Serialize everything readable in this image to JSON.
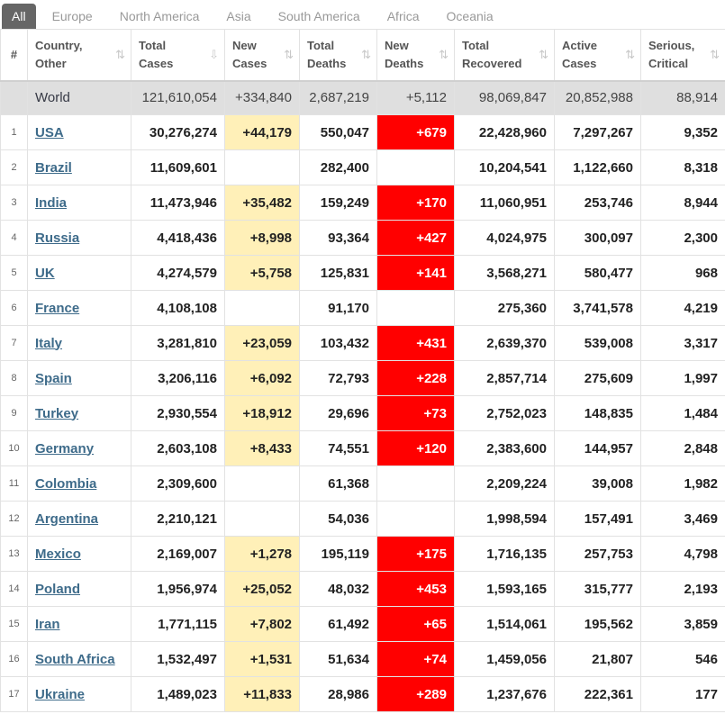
{
  "tabs": [
    "All",
    "Europe",
    "North America",
    "Asia",
    "South America",
    "Africa",
    "Oceania"
  ],
  "headers": [
    [
      "#"
    ],
    [
      "Country,",
      "Other"
    ],
    [
      "Total",
      "Cases"
    ],
    [
      "New",
      "Cases"
    ],
    [
      "Total",
      "Deaths"
    ],
    [
      "New",
      "Deaths"
    ],
    [
      "Total",
      "Recovered"
    ],
    [
      "Active",
      "Cases"
    ],
    [
      "Serious,",
      "Critical"
    ]
  ],
  "world": {
    "country": "World",
    "total_cases": "121,610,054",
    "new_cases": "+334,840",
    "total_deaths": "2,687,219",
    "new_deaths": "+5,112",
    "total_recovered": "98,069,847",
    "active_cases": "20,852,988",
    "serious": "88,914"
  },
  "rows": [
    {
      "num": "1",
      "country": "USA",
      "total_cases": "30,276,274",
      "new_cases": "+44,179",
      "total_deaths": "550,047",
      "new_deaths": "+679",
      "total_recovered": "22,428,960",
      "active_cases": "7,297,267",
      "serious": "9,352"
    },
    {
      "num": "2",
      "country": "Brazil",
      "total_cases": "11,609,601",
      "new_cases": "",
      "total_deaths": "282,400",
      "new_deaths": "",
      "total_recovered": "10,204,541",
      "active_cases": "1,122,660",
      "serious": "8,318"
    },
    {
      "num": "3",
      "country": "India",
      "total_cases": "11,473,946",
      "new_cases": "+35,482",
      "total_deaths": "159,249",
      "new_deaths": "+170",
      "total_recovered": "11,060,951",
      "active_cases": "253,746",
      "serious": "8,944"
    },
    {
      "num": "4",
      "country": "Russia",
      "total_cases": "4,418,436",
      "new_cases": "+8,998",
      "total_deaths": "93,364",
      "new_deaths": "+427",
      "total_recovered": "4,024,975",
      "active_cases": "300,097",
      "serious": "2,300"
    },
    {
      "num": "5",
      "country": "UK",
      "total_cases": "4,274,579",
      "new_cases": "+5,758",
      "total_deaths": "125,831",
      "new_deaths": "+141",
      "total_recovered": "3,568,271",
      "active_cases": "580,477",
      "serious": "968"
    },
    {
      "num": "6",
      "country": "France",
      "total_cases": "4,108,108",
      "new_cases": "",
      "total_deaths": "91,170",
      "new_deaths": "",
      "total_recovered": "275,360",
      "active_cases": "3,741,578",
      "serious": "4,219"
    },
    {
      "num": "7",
      "country": "Italy",
      "total_cases": "3,281,810",
      "new_cases": "+23,059",
      "total_deaths": "103,432",
      "new_deaths": "+431",
      "total_recovered": "2,639,370",
      "active_cases": "539,008",
      "serious": "3,317"
    },
    {
      "num": "8",
      "country": "Spain",
      "total_cases": "3,206,116",
      "new_cases": "+6,092",
      "total_deaths": "72,793",
      "new_deaths": "+228",
      "total_recovered": "2,857,714",
      "active_cases": "275,609",
      "serious": "1,997"
    },
    {
      "num": "9",
      "country": "Turkey",
      "total_cases": "2,930,554",
      "new_cases": "+18,912",
      "total_deaths": "29,696",
      "new_deaths": "+73",
      "total_recovered": "2,752,023",
      "active_cases": "148,835",
      "serious": "1,484"
    },
    {
      "num": "10",
      "country": "Germany",
      "total_cases": "2,603,108",
      "new_cases": "+8,433",
      "total_deaths": "74,551",
      "new_deaths": "+120",
      "total_recovered": "2,383,600",
      "active_cases": "144,957",
      "serious": "2,848"
    },
    {
      "num": "11",
      "country": "Colombia",
      "total_cases": "2,309,600",
      "new_cases": "",
      "total_deaths": "61,368",
      "new_deaths": "",
      "total_recovered": "2,209,224",
      "active_cases": "39,008",
      "serious": "1,982"
    },
    {
      "num": "12",
      "country": "Argentina",
      "total_cases": "2,210,121",
      "new_cases": "",
      "total_deaths": "54,036",
      "new_deaths": "",
      "total_recovered": "1,998,594",
      "active_cases": "157,491",
      "serious": "3,469"
    },
    {
      "num": "13",
      "country": "Mexico",
      "total_cases": "2,169,007",
      "new_cases": "+1,278",
      "total_deaths": "195,119",
      "new_deaths": "+175",
      "total_recovered": "1,716,135",
      "active_cases": "257,753",
      "serious": "4,798"
    },
    {
      "num": "14",
      "country": "Poland",
      "total_cases": "1,956,974",
      "new_cases": "+25,052",
      "total_deaths": "48,032",
      "new_deaths": "+453",
      "total_recovered": "1,593,165",
      "active_cases": "315,777",
      "serious": "2,193"
    },
    {
      "num": "15",
      "country": "Iran",
      "total_cases": "1,771,115",
      "new_cases": "+7,802",
      "total_deaths": "61,492",
      "new_deaths": "+65",
      "total_recovered": "1,514,061",
      "active_cases": "195,562",
      "serious": "3,859"
    },
    {
      "num": "16",
      "country": "South Africa",
      "total_cases": "1,532,497",
      "new_cases": "+1,531",
      "total_deaths": "51,634",
      "new_deaths": "+74",
      "total_recovered": "1,459,056",
      "active_cases": "21,807",
      "serious": "546"
    },
    {
      "num": "17",
      "country": "Ukraine",
      "total_cases": "1,489,023",
      "new_cases": "+11,833",
      "total_deaths": "28,986",
      "new_deaths": "+289",
      "total_recovered": "1,237,676",
      "active_cases": "222,361",
      "serious": "177"
    }
  ],
  "colors": {
    "new_cases_bg": "#fff0b8",
    "new_deaths_bg": "#ff0000",
    "link": "#3e6b8a"
  }
}
